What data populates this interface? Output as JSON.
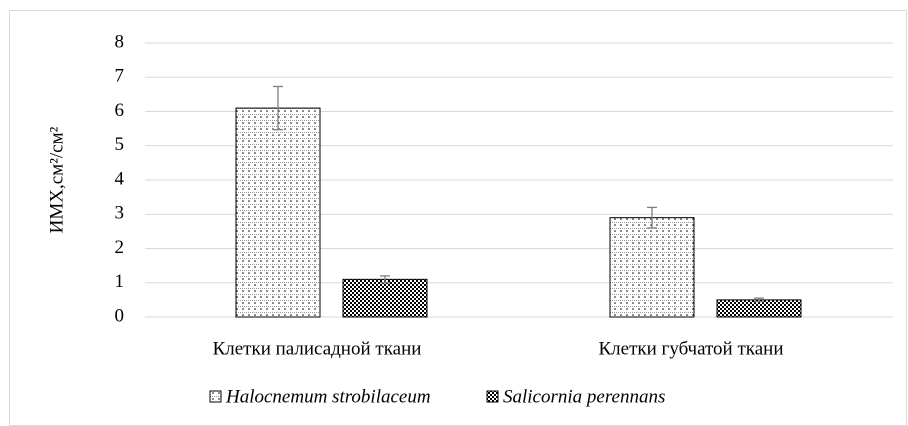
{
  "chart_data": {
    "type": "bar",
    "ylabel": "ИМХ,см²/см²",
    "categories": [
      "Клетки палисадной ткани",
      "Клетки губчатой ткани"
    ],
    "series": [
      {
        "name": "Halocnemum strobilaceum",
        "values": [
          6.1,
          2.9
        ],
        "errors": [
          0.63,
          0.3
        ]
      },
      {
        "name": "Salicornia perennans",
        "values": [
          1.1,
          0.5
        ],
        "errors": [
          0.1,
          0.05
        ]
      }
    ],
    "ylim": [
      0,
      8
    ],
    "yticks": [
      0,
      1,
      2,
      3,
      4,
      5,
      6,
      7,
      8
    ],
    "grid": true,
    "legend": "bottom"
  }
}
